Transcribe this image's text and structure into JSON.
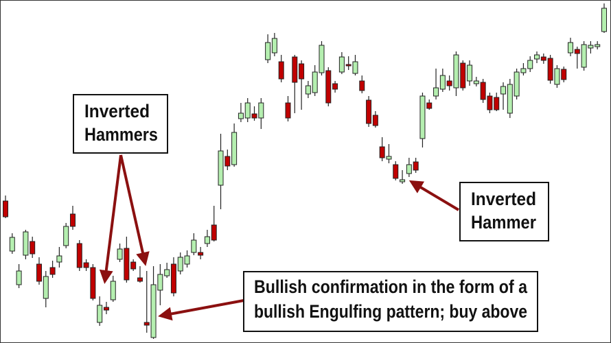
{
  "chart_data": {
    "type": "candlestick",
    "ylim": [
      0,
      500
    ],
    "up_color": "#b5efb0",
    "down_color": "#c00000",
    "outline_color": "#222222",
    "open": [
      207,
      134,
      85,
      128,
      148,
      115,
      65,
      110,
      118,
      142,
      188,
      145,
      117,
      110,
      30,
      52,
      63,
      122,
      138,
      118,
      95,
      30,
      8,
      77,
      98,
      115,
      105,
      115,
      132,
      132,
      145,
      172,
      230,
      272,
      260,
      327,
      328,
      334,
      328,
      413,
      423,
      410,
      350,
      417,
      407,
      363,
      365,
      394,
      397,
      378,
      395,
      406,
      393,
      382,
      354,
      332,
      286,
      268,
      260,
      235,
      247,
      264,
      298,
      350,
      360,
      370,
      382,
      372,
      408,
      382,
      378,
      380,
      360,
      358,
      363,
      335,
      360,
      394,
      400,
      414,
      417,
      415,
      377,
      399,
      423,
      428,
      402,
      430,
      432,
      454
    ],
    "high": [
      215,
      160,
      115,
      165,
      155,
      125,
      105,
      120,
      140,
      175,
      200,
      150,
      122,
      115,
      68,
      60,
      98,
      145,
      155,
      122,
      112,
      105,
      112,
      115,
      117,
      125,
      132,
      135,
      160,
      140,
      165,
      200,
      305,
      282,
      320,
      350,
      357,
      345,
      357,
      450,
      452,
      420,
      360,
      420,
      412,
      382,
      405,
      440,
      402,
      382,
      424,
      418,
      420,
      390,
      360,
      338,
      300,
      290,
      265,
      252,
      270,
      270,
      365,
      355,
      400,
      400,
      390,
      425,
      412,
      412,
      388,
      385,
      365,
      365,
      380,
      385,
      400,
      408,
      418,
      425,
      422,
      420,
      405,
      403,
      445,
      432,
      440,
      440,
      440,
      495
    ],
    "low": [
      182,
      130,
      80,
      122,
      124,
      85,
      52,
      95,
      110,
      138,
      165,
      105,
      105,
      62,
      25,
      42,
      60,
      118,
      88,
      105,
      88,
      15,
      6,
      55,
      95,
      68,
      100,
      110,
      128,
      122,
      140,
      148,
      195,
      252,
      257,
      322,
      322,
      324,
      312,
      408,
      418,
      380,
      323,
      335,
      340,
      357,
      360,
      390,
      345,
      365,
      392,
      398,
      390,
      364,
      315,
      314,
      265,
      262,
      237,
      232,
      242,
      248,
      285,
      340,
      355,
      366,
      368,
      360,
      368,
      375,
      374,
      350,
      335,
      338,
      340,
      328,
      355,
      390,
      395,
      408,
      407,
      378,
      372,
      380,
      418,
      400,
      397,
      422,
      428,
      452
    ],
    "close": [
      184,
      154,
      105,
      162,
      130,
      90,
      97,
      100,
      127,
      170,
      170,
      110,
      110,
      65,
      55,
      48,
      90,
      137,
      92,
      108,
      90,
      26,
      85,
      100,
      107,
      73,
      125,
      127,
      150,
      128,
      155,
      150,
      280,
      258,
      307,
      335,
      350,
      328,
      350,
      438,
      444,
      385,
      328,
      380,
      385,
      375,
      395,
      434,
      350,
      370,
      417,
      404,
      410,
      368,
      320,
      317,
      270,
      272,
      240,
      238,
      260,
      252,
      360,
      342,
      372,
      390,
      375,
      420,
      372,
      405,
      382,
      355,
      340,
      340,
      374,
      377,
      395,
      400,
      412,
      420,
      412,
      383,
      400,
      384,
      438,
      422,
      435,
      434,
      435,
      488
    ],
    "annotations": [
      {
        "lines": [
          "Inverted",
          "Hammers"
        ]
      },
      {
        "lines": [
          "Inverted",
          "Hammer"
        ]
      },
      {
        "lines": [
          "Bullish confirmation in the form of a",
          "bullish Engulfing pattern; buy above"
        ]
      }
    ]
  }
}
